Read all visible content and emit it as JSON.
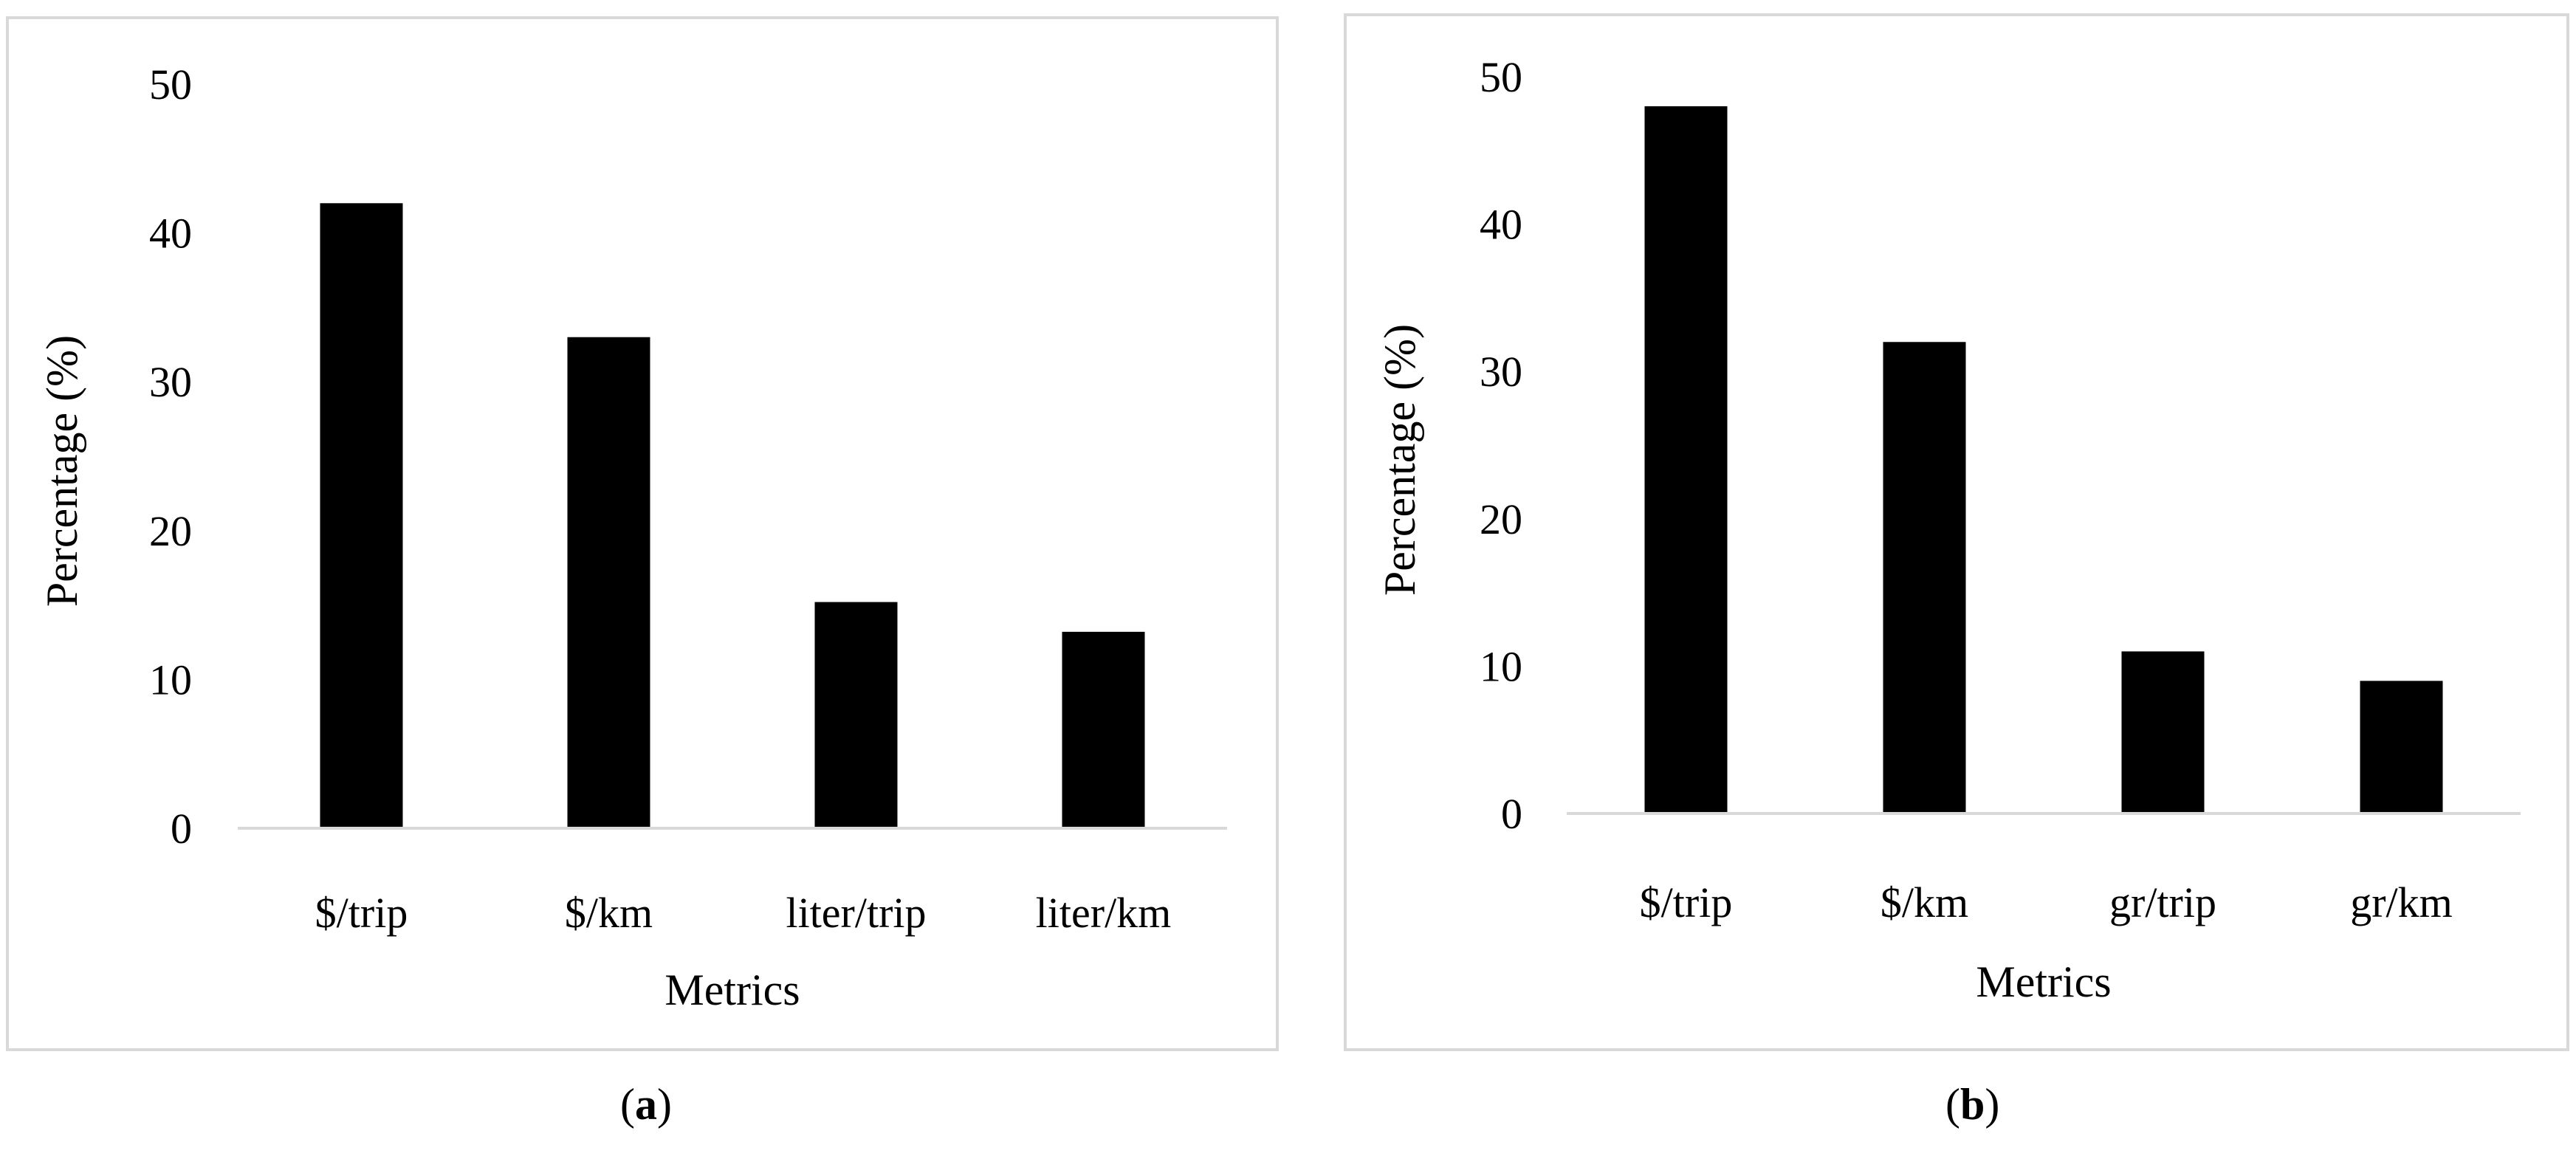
{
  "colors": {
    "bar": "#000000",
    "axis": "#d9d9d9",
    "frame": "#d9d9d9"
  },
  "chart_data": [
    {
      "type": "bar",
      "categories": [
        "$/trip",
        "$/km",
        "liter/trip",
        "liter/km"
      ],
      "values": [
        42,
        33,
        15.2,
        13.2
      ],
      "yticks": [
        "0",
        "10",
        "20",
        "30",
        "40",
        "50"
      ],
      "ylim": [
        0,
        50
      ],
      "xlabel": "Metrics",
      "ylabel": "Percentage (%)",
      "grid": false,
      "caption": {
        "letter": "a"
      }
    },
    {
      "type": "bar",
      "categories": [
        "$/trip",
        "$/km",
        "gr/trip",
        "gr/km"
      ],
      "values": [
        48,
        32,
        11,
        9
      ],
      "yticks": [
        "0",
        "10",
        "20",
        "30",
        "40",
        "50"
      ],
      "ylim": [
        0,
        50
      ],
      "xlabel": "Metrics",
      "ylabel": "Percentage (%)",
      "grid": false,
      "caption": {
        "letter": "b"
      }
    }
  ]
}
